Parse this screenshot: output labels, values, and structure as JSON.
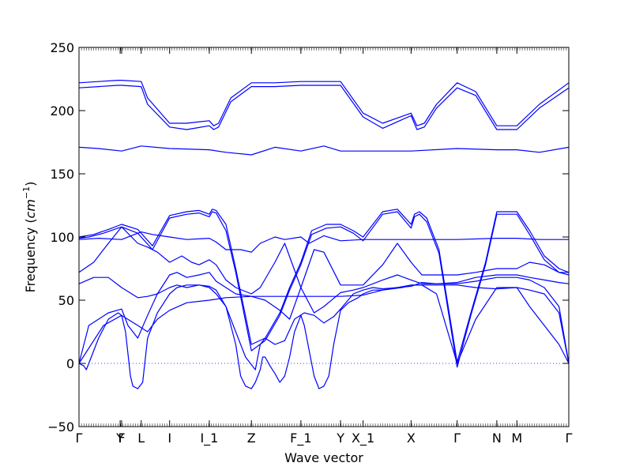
{
  "chart_data": {
    "type": "line",
    "title": "",
    "xlabel": "Wave vector",
    "ylabel_prefix": "Frequency (",
    "ylabel_unit_base": "cm",
    "ylabel_unit_exp": "−1",
    "ylabel_suffix": ")",
    "ylim": [
      -50,
      250
    ],
    "yticks": [
      -50,
      0,
      50,
      100,
      150,
      200,
      250
    ],
    "ytick_labels": [
      "−50",
      "0",
      "50",
      "100",
      "150",
      "200",
      "250"
    ],
    "xlim": [
      0,
      100
    ],
    "xticks": [
      {
        "x": 0,
        "label": "Γ"
      },
      {
        "x": 8.4,
        "label": "Y"
      },
      {
        "x": 8.7,
        "label": "F"
      },
      {
        "x": 12.7,
        "label": "L"
      },
      {
        "x": 18.5,
        "label": "I"
      },
      {
        "x": 26.6,
        "label": "I_1"
      },
      {
        "x": 35.2,
        "label": "Z"
      },
      {
        "x": 45.3,
        "label": "F_1"
      },
      {
        "x": 53.4,
        "label": "Y"
      },
      {
        "x": 58.0,
        "label": "X_1"
      },
      {
        "x": 67.8,
        "label": "X"
      },
      {
        "x": 77.2,
        "label": "Γ"
      },
      {
        "x": 85.3,
        "label": "N"
      },
      {
        "x": 89.4,
        "label": "M"
      },
      {
        "x": 100,
        "label": "Γ"
      }
    ],
    "zero_line": 0,
    "line_color": "#0000ff",
    "zero_line_color": "#0000ff",
    "series": [
      {
        "x": [
          0,
          4,
          8,
          8.7,
          12.7,
          14,
          18.5,
          22,
          26.6,
          27.5,
          28.5,
          31,
          35.2,
          40,
          45.3,
          50,
          53.4,
          58,
          62,
          67.8,
          69,
          70.5,
          73,
          77.2,
          81,
          85.3,
          89.4,
          94,
          100
        ],
        "y": [
          222,
          223,
          224,
          224,
          223,
          210,
          190,
          190,
          192,
          188,
          190,
          210,
          222,
          222,
          223,
          223,
          223,
          198,
          190,
          198,
          188,
          190,
          205,
          222,
          215,
          188,
          188,
          205,
          222
        ]
      },
      {
        "x": [
          0,
          4,
          8,
          8.7,
          12.7,
          14,
          18.5,
          22,
          26.6,
          27.5,
          28.5,
          31,
          35.2,
          40,
          45.3,
          50,
          53.4,
          58,
          62,
          67.8,
          69,
          70.5,
          73,
          77.2,
          81,
          85.3,
          89.4,
          94,
          100
        ],
        "y": [
          218,
          219,
          220,
          220,
          219,
          205,
          187,
          185,
          188,
          185,
          187,
          207,
          219,
          219,
          220,
          220,
          220,
          195,
          186,
          196,
          185,
          187,
          202,
          218,
          212,
          185,
          185,
          202,
          218
        ]
      },
      {
        "x": [
          0,
          4,
          8.7,
          12.7,
          18.5,
          26.6,
          30,
          35.2,
          40,
          45.3,
          50,
          53.4,
          58,
          67.8,
          77.2,
          85.3,
          89.4,
          94,
          100
        ],
        "y": [
          171,
          170,
          168,
          172,
          170,
          169,
          167,
          165,
          171,
          168,
          172,
          168,
          168,
          168,
          170,
          169,
          169,
          167,
          171
        ]
      },
      {
        "x": [
          0,
          3,
          6,
          8.7,
          12,
          15,
          18.5,
          22,
          24.5,
          26.6,
          27.2,
          28,
          30,
          32,
          35.2,
          38,
          41,
          43,
          45.3,
          47.5,
          50.5,
          53.4,
          56,
          58,
          62,
          65,
          67.8,
          68.5,
          69.5,
          71,
          73.5,
          77.2,
          80,
          83,
          85.3,
          89.4,
          92,
          95,
          98,
          100
        ],
        "y": [
          100,
          102,
          106,
          110,
          106,
          93,
          117,
          120,
          121,
          118,
          122,
          121,
          110,
          75,
          15,
          20,
          40,
          60,
          80,
          105,
          110,
          110,
          105,
          100,
          120,
          122,
          110,
          118,
          120,
          115,
          90,
          1,
          40,
          80,
          120,
          120,
          105,
          85,
          75,
          72
        ]
      },
      {
        "x": [
          0,
          2,
          5,
          8.7,
          12,
          15,
          18.5,
          22,
          24.5,
          26.6,
          27.2,
          28,
          30,
          32,
          35.2,
          38,
          41,
          43,
          45.3,
          47.5,
          50.5,
          53.4,
          56,
          58,
          62,
          65,
          67.8,
          68.5,
          69.5,
          71,
          73.5,
          77.2,
          80,
          83,
          85.3,
          89.4,
          92,
          95,
          98,
          100
        ],
        "y": [
          99,
          100,
          103,
          108,
          103,
          90,
          115,
          118,
          119,
          116,
          120,
          119,
          105,
          72,
          10,
          18,
          38,
          58,
          78,
          102,
          107,
          108,
          103,
          97,
          118,
          120,
          107,
          116,
          118,
          112,
          87,
          -3,
          38,
          78,
          118,
          118,
          102,
          82,
          72,
          70
        ]
      },
      {
        "x": [
          0,
          4,
          8.7,
          12.7,
          15,
          18.5,
          22,
          26.6,
          28,
          30,
          33,
          35.2,
          37,
          40,
          42,
          45.3,
          47,
          50,
          53.4,
          58,
          62,
          67.8,
          72,
          77.2,
          85.3,
          89.4,
          94,
          100
        ],
        "y": [
          98,
          99,
          98,
          104,
          102,
          100,
          98,
          99,
          96,
          90,
          90,
          88,
          95,
          100,
          98,
          100,
          95,
          101,
          97,
          98,
          98,
          98,
          98,
          98,
          99,
          99,
          98,
          98
        ]
      },
      {
        "x": [
          0,
          3,
          6,
          8.7,
          12,
          14,
          16,
          18.5,
          21,
          23,
          24.5,
          26.6,
          28,
          30,
          32,
          35.2,
          37,
          40,
          42,
          45.3,
          48,
          50,
          53.4,
          56,
          58,
          62,
          65,
          67.8,
          70,
          73,
          77.2,
          81,
          85.3,
          89.4,
          92,
          95,
          98,
          100
        ],
        "y": [
          72,
          80,
          95,
          108,
          95,
          92,
          88,
          80,
          85,
          80,
          78,
          82,
          78,
          66,
          60,
          55,
          60,
          80,
          95,
          60,
          90,
          88,
          62,
          62,
          62,
          78,
          95,
          80,
          70,
          70,
          70,
          72,
          75,
          75,
          80,
          78,
          72,
          72
        ]
      },
      {
        "x": [
          0,
          3,
          6,
          8.7,
          12,
          14,
          16,
          18.5,
          20,
          22,
          24.5,
          26.6,
          28,
          30,
          32,
          35.2,
          38,
          41,
          43,
          45.3,
          48,
          50,
          53.4,
          56,
          58,
          62,
          65,
          67.8,
          70,
          73,
          77.2,
          81,
          85.3,
          89.4,
          92,
          95,
          98,
          100
        ],
        "y": [
          63,
          68,
          68,
          60,
          52,
          53,
          55,
          70,
          72,
          68,
          70,
          72,
          65,
          60,
          55,
          53,
          50,
          42,
          35,
          60,
          40,
          45,
          56,
          58,
          60,
          66,
          70,
          66,
          63,
          63,
          64,
          68,
          70,
          70,
          68,
          66,
          64,
          63
        ]
      },
      {
        "x": [
          0,
          2,
          4,
          6,
          8.7,
          10,
          12,
          14,
          16,
          18.5,
          20,
          22,
          24.5,
          26.6,
          28,
          30,
          32,
          34,
          35.2,
          36,
          37,
          38,
          40,
          42,
          44,
          46,
          48,
          50,
          52,
          53.4,
          56,
          58,
          60,
          62,
          65,
          67.8,
          70,
          73,
          77.2,
          81,
          85.3,
          89.4,
          92,
          95,
          98,
          100
        ],
        "y": [
          0,
          30,
          35,
          40,
          43,
          30,
          20,
          38,
          55,
          60,
          62,
          60,
          62,
          61,
          58,
          45,
          25,
          5,
          -1,
          -5,
          15,
          20,
          15,
          18,
          35,
          40,
          38,
          32,
          37,
          43,
          55,
          58,
          60,
          59,
          60,
          61,
          64,
          63,
          63,
          65,
          68,
          68,
          66,
          60,
          45,
          0
        ]
      },
      {
        "x": [
          0,
          1,
          1.5,
          2,
          4,
          6,
          8,
          8.7,
          9.5,
          10.5,
          11,
          12,
          13,
          14,
          16,
          18.5,
          20,
          22,
          24.5,
          26.6,
          28,
          30,
          32,
          33,
          34,
          35.2,
          36,
          37,
          37.5,
          38,
          39,
          40,
          41,
          42,
          43,
          44,
          45.3,
          46,
          47,
          48,
          49,
          50,
          51,
          52,
          53.4,
          55,
          57,
          58,
          60,
          62,
          65,
          67.8,
          70,
          73,
          77.2,
          81,
          85.3,
          89.4,
          92,
          95,
          98,
          100
        ],
        "y": [
          0,
          -2,
          -5,
          0,
          20,
          35,
          40,
          38,
          25,
          -10,
          -18,
          -20,
          -15,
          20,
          40,
          55,
          60,
          62,
          62,
          60,
          55,
          45,
          15,
          -10,
          -18,
          -20,
          -15,
          -5,
          5,
          5,
          -2,
          -8,
          -15,
          -10,
          5,
          25,
          38,
          30,
          10,
          -10,
          -20,
          -18,
          -10,
          15,
          42,
          48,
          52,
          55,
          58,
          58,
          60,
          62,
          62,
          62,
          62,
          60,
          59,
          60,
          58,
          55,
          40,
          0
        ]
      },
      {
        "x": [
          0,
          5,
          8.7,
          12,
          14,
          16,
          18.5,
          22,
          26.6,
          30,
          35.2,
          40,
          45.3,
          50,
          53.4,
          58,
          62,
          66,
          67.8,
          70,
          73,
          77.2,
          81,
          85.3,
          89.4,
          92,
          95,
          98,
          100
        ],
        "y": [
          0,
          30,
          38,
          30,
          25,
          35,
          42,
          48,
          50,
          52,
          53,
          53,
          53,
          53,
          53,
          54,
          58,
          60,
          62,
          62,
          55,
          0,
          35,
          60,
          60,
          45,
          30,
          15,
          0
        ]
      }
    ]
  }
}
